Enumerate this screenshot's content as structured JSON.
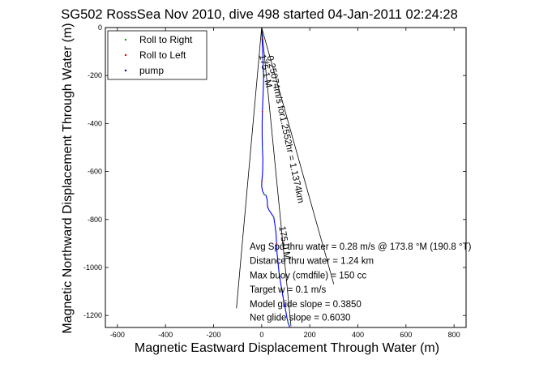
{
  "chart_data": {
    "type": "line",
    "title": "SG502 RossSea Nov 2010, dive 498 started 04-Jan-2011 02:24:28",
    "xlabel": "Magnetic Eastward Displacement Through Water (m)",
    "ylabel": "Magnetic Northward Displacement Through Water (m)",
    "xlim": [
      -650,
      850
    ],
    "ylim": [
      -1250,
      0
    ],
    "xticks": [
      -600,
      -400,
      -200,
      0,
      200,
      400,
      600,
      800
    ],
    "yticks": [
      0,
      -200,
      -400,
      -600,
      -800,
      -1000,
      -1200
    ],
    "grid": false,
    "legend": {
      "placement": "top-left",
      "entries": [
        {
          "label": "Roll to Right",
          "color": "#00aa00",
          "marker": "dot"
        },
        {
          "label": "Roll to Left",
          "color": "#dd0000",
          "marker": "dot"
        },
        {
          "label": "pump",
          "color": "#000080",
          "marker": "dot"
        }
      ]
    },
    "series": [
      {
        "style": "track",
        "color": "#0000ff",
        "x": [
          0,
          2,
          4,
          6,
          8,
          7,
          5,
          3,
          2,
          2,
          3,
          5,
          4,
          1,
          0,
          3,
          10,
          18,
          23,
          24,
          30,
          40,
          50,
          55,
          60,
          62,
          64,
          68,
          72,
          78,
          85,
          92,
          100,
          105,
          110,
          115,
          118
        ],
        "y": [
          0,
          -50,
          -100,
          -150,
          -200,
          -250,
          -300,
          -350,
          -400,
          -450,
          -500,
          -550,
          -600,
          -640,
          -660,
          -680,
          -695,
          -700,
          -720,
          -745,
          -760,
          -775,
          -790,
          -820,
          -860,
          -900,
          -940,
          -980,
          -1020,
          -1060,
          -1100,
          -1140,
          -1180,
          -1210,
          -1230,
          -1245,
          -1250
        ]
      },
      {
        "style": "line",
        "color": "#000000",
        "x": [
          0,
          300
        ],
        "y": [
          0,
          -1070
        ]
      },
      {
        "style": "line",
        "color": "#000000",
        "x": [
          0,
          122
        ],
        "y": [
          0,
          -1245
        ]
      },
      {
        "style": "line",
        "color": "#000000",
        "x": [
          0,
          -105
        ],
        "y": [
          0,
          -1170
        ]
      }
    ],
    "track_labels": [
      {
        "text": "0.25074m/s  for1.2552hr = 1.1374km",
        "x": 22,
        "y": -120,
        "angle": -78
      },
      {
        "text": "175.1 M",
        "x": -10,
        "y": -115,
        "angle": -78
      },
      {
        "text": "175.0 M",
        "x": 72,
        "y": -830,
        "angle": -80
      }
    ],
    "annotations": [
      {
        "text": "Avg Spd thru water =  0.28 m/s @ 173.8   °M (190.8 °T)",
        "x": -50,
        "y": -925
      },
      {
        "text": "Distance thru water =  1.24 km",
        "x": -50,
        "y": -985
      },
      {
        "text": "Max buoy (cmdfile) = 150 cc",
        "x": -50,
        "y": -1045
      },
      {
        "text": "Target w = 0.1 m/s",
        "x": -50,
        "y": -1105
      },
      {
        "text": "Model glide slope = 0.3850",
        "x": -50,
        "y": -1165
      },
      {
        "text": "Net glide slope = 0.6030",
        "x": -50,
        "y": -1222
      }
    ]
  }
}
